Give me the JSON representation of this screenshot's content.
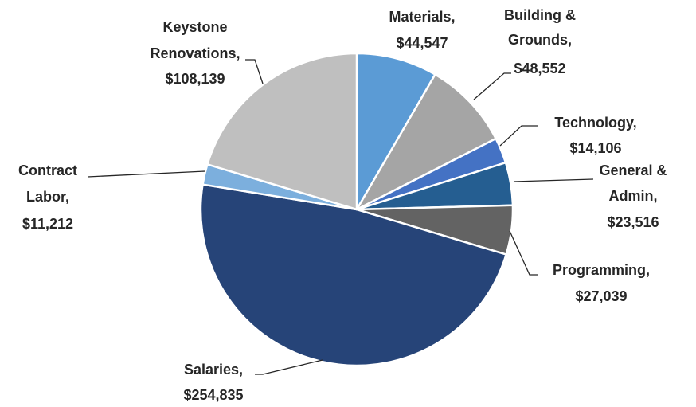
{
  "chart_data": {
    "type": "pie",
    "categories": [
      "Materials,",
      "Building & Grounds,",
      "Technology,",
      "General & Admin,",
      "Programming,",
      "Salaries,",
      "Contract Labor,",
      "Keystone Renovations,"
    ],
    "values": [
      44547,
      48552,
      14106,
      23516,
      27039,
      254835,
      11212,
      108139
    ],
    "value_labels": [
      "$44,547",
      "$48,552",
      "$14,106",
      "$23,516",
      "$27,039",
      "$254,835",
      "$11,212",
      "$108,139"
    ],
    "colors": [
      "#5b9bd5",
      "#a5a5a5",
      "#4472c4",
      "#255e91",
      "#636363",
      "#264478",
      "#7cafdd",
      "#bfbfbf"
    ]
  }
}
